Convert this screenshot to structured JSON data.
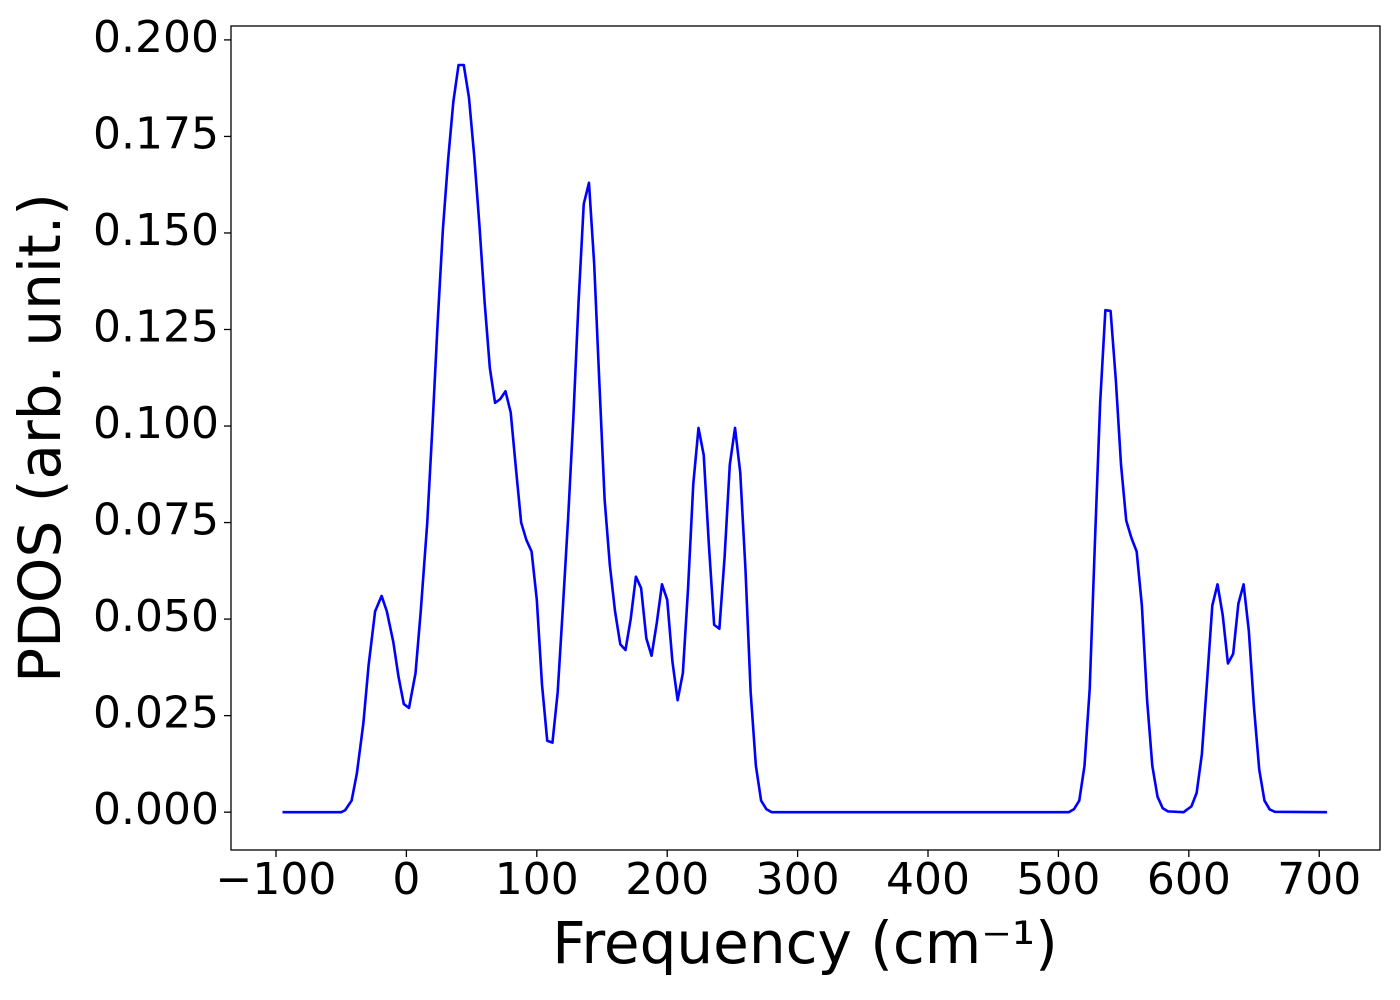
{
  "chart_data": {
    "type": "line",
    "x_label": "Frequency (cm⁻¹)",
    "y_label": "PDOS (arb. unit.)",
    "x": [
      -95,
      -50,
      -47,
      -42,
      -38,
      -33,
      -29,
      -24,
      -19,
      -15,
      -10,
      -6,
      -2,
      2,
      7,
      11,
      16,
      20,
      24,
      28,
      32,
      36,
      40,
      44,
      48,
      52,
      56,
      60,
      64,
      68,
      72,
      76,
      80,
      84,
      88,
      92,
      96,
      100,
      104,
      108,
      112,
      116,
      120,
      124,
      128,
      132,
      136,
      140,
      144,
      148,
      152,
      156,
      160,
      164,
      168,
      172,
      176,
      180,
      184,
      188,
      192,
      196,
      200,
      204,
      208,
      212,
      216,
      220,
      224,
      228,
      232,
      236,
      240,
      244,
      248,
      252,
      256,
      260,
      264,
      268,
      272,
      276,
      280,
      508,
      512,
      516,
      520,
      524,
      528,
      532,
      536,
      540,
      544,
      548,
      552,
      556,
      560,
      564,
      568,
      572,
      576,
      580,
      584,
      596,
      598,
      602,
      606,
      610,
      614,
      618,
      622,
      626,
      630,
      634,
      638,
      642,
      646,
      650,
      654,
      658,
      662,
      666,
      706
    ],
    "series": [
      {
        "color": "#0000ff",
        "values": [
          0,
          0,
          0.0005,
          0.003,
          0.01,
          0.023,
          0.038,
          0.052,
          0.056,
          0.052,
          0.044,
          0.035,
          0.028,
          0.027,
          0.036,
          0.052,
          0.075,
          0.1,
          0.127,
          0.151,
          0.169,
          0.184,
          0.1935,
          0.1935,
          0.185,
          0.17,
          0.152,
          0.132,
          0.115,
          0.106,
          0.107,
          0.109,
          0.1035,
          0.089,
          0.075,
          0.0705,
          0.0675,
          0.055,
          0.033,
          0.0185,
          0.018,
          0.031,
          0.053,
          0.076,
          0.102,
          0.132,
          0.1575,
          0.163,
          0.142,
          0.111,
          0.081,
          0.064,
          0.052,
          0.0435,
          0.042,
          0.05,
          0.061,
          0.058,
          0.045,
          0.0405,
          0.049,
          0.059,
          0.055,
          0.039,
          0.029,
          0.036,
          0.058,
          0.085,
          0.0995,
          0.0925,
          0.069,
          0.0485,
          0.0475,
          0.066,
          0.09,
          0.0995,
          0.088,
          0.063,
          0.031,
          0.012,
          0.003,
          0.0008,
          0,
          0,
          0.0008,
          0.003,
          0.012,
          0.032,
          0.07,
          0.106,
          0.13,
          0.1298,
          0.112,
          0.09,
          0.0755,
          0.071,
          0.0675,
          0.0535,
          0.029,
          0.012,
          0.004,
          0.001,
          0.0002,
          0,
          0.0005,
          0.0015,
          0.005,
          0.015,
          0.034,
          0.0535,
          0.059,
          0.051,
          0.0385,
          0.041,
          0.054,
          0.059,
          0.047,
          0.027,
          0.011,
          0.003,
          0.0007,
          0.0001,
          0
        ]
      }
    ],
    "xlim": [
      -134.5,
      746.6
    ],
    "ylim": [
      -0.0098,
      0.2036
    ],
    "xticks": [
      {
        "value": -100,
        "label": "−100"
      },
      0,
      100,
      200,
      300,
      400,
      500,
      600,
      700
    ],
    "yticks": [
      {
        "value": 0,
        "label": "0.000"
      },
      {
        "value": 0.025,
        "label": "0.025"
      },
      {
        "value": 0.05,
        "label": "0.050"
      },
      {
        "value": 0.075,
        "label": "0.075"
      },
      {
        "value": 0.1,
        "label": "0.100"
      },
      {
        "value": 0.125,
        "label": "0.125"
      },
      {
        "value": 0.15,
        "label": "0.150"
      },
      {
        "value": 0.175,
        "label": "0.175"
      },
      {
        "value": 0.2,
        "label": "0.200"
      }
    ]
  }
}
